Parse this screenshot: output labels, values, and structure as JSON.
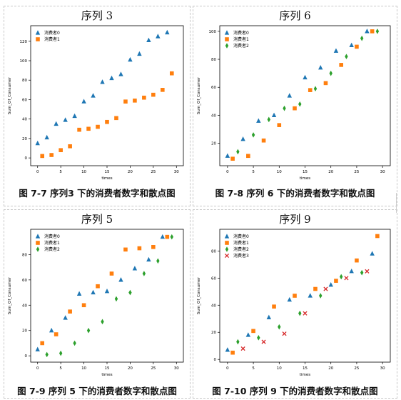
{
  "colors": {
    "series": [
      "#1f77b4",
      "#ff7f0e",
      "#2ca02c",
      "#d62728"
    ],
    "axis": "#000000",
    "panel_border": "#c8c8c8"
  },
  "chart_data": [
    {
      "type": "scatter",
      "panel_title": "序列 3",
      "caption": "图 7-7 序列3 下的消费者数字和散点图",
      "xlabel": "times",
      "ylabel": "Sum_Of_Consumer",
      "xlim": [
        -1.5,
        31.5
      ],
      "ylim": [
        -8,
        136
      ],
      "xticks": [
        0,
        5,
        10,
        15,
        20,
        25,
        30
      ],
      "yticks": [
        0,
        20,
        40,
        60,
        80,
        100,
        120
      ],
      "legend": "top-left",
      "series": [
        {
          "name": "消费者0",
          "marker": "triangle",
          "x": [
            0,
            2,
            4,
            6,
            8,
            10,
            12,
            14,
            16,
            18,
            20,
            22,
            24,
            26,
            28
          ],
          "y": [
            15,
            21,
            35,
            39,
            43,
            58,
            64,
            78,
            82,
            86,
            101,
            107,
            121,
            125,
            129
          ]
        },
        {
          "name": "消费者1",
          "marker": "square",
          "x": [
            1,
            3,
            5,
            7,
            9,
            11,
            13,
            15,
            17,
            19,
            21,
            23,
            25,
            27,
            29
          ],
          "y": [
            2,
            3,
            8,
            12,
            29,
            30,
            32,
            37,
            41,
            58,
            59,
            62,
            65,
            70,
            87
          ]
        }
      ]
    },
    {
      "type": "scatter",
      "panel_title": "序列 6",
      "caption": "图 7-8 序列 6 下的消费者数字和散点图",
      "xlabel": "times",
      "ylabel": "Sum_Of_Consumer",
      "xlim": [
        -1.5,
        31.5
      ],
      "ylim": [
        4,
        104
      ],
      "xticks": [
        0,
        5,
        10,
        15,
        20,
        25,
        30
      ],
      "yticks": [
        20,
        40,
        60,
        80,
        100
      ],
      "legend": "top-left",
      "series": [
        {
          "name": "消费者0",
          "marker": "triangle",
          "x": [
            0,
            3,
            6,
            9,
            12,
            15,
            18,
            21,
            24,
            27
          ],
          "y": [
            11,
            23,
            36,
            40,
            54,
            67,
            74,
            86,
            90,
            100
          ]
        },
        {
          "name": "消费者1",
          "marker": "square",
          "x": [
            1,
            4,
            7,
            10,
            13,
            16,
            19,
            22,
            25,
            28
          ],
          "y": [
            9,
            11,
            22,
            33,
            45,
            58,
            63,
            76,
            89,
            100
          ]
        },
        {
          "name": "消费者2",
          "marker": "diamond",
          "x": [
            2,
            5,
            8,
            11,
            14,
            17,
            20,
            23,
            26,
            29
          ],
          "y": [
            14,
            26,
            37,
            45,
            48,
            59,
            70,
            82,
            95,
            100
          ]
        }
      ]
    },
    {
      "type": "scatter",
      "panel_title": "序列 5",
      "caption": "图 7-9 序列 5 下的消费者数字和散点图",
      "xlabel": "times",
      "ylabel": "Sum_Of_Consumer",
      "xlim": [
        -1.5,
        31.5
      ],
      "ylim": [
        -5,
        100
      ],
      "xticks": [
        0,
        5,
        10,
        15,
        20,
        25,
        30
      ],
      "yticks": [
        0,
        20,
        40,
        60,
        80
      ],
      "legend": "top-left",
      "series": [
        {
          "name": "消费者0",
          "marker": "triangle",
          "x": [
            0,
            3,
            6,
            9,
            12,
            15,
            18,
            21,
            24,
            27
          ],
          "y": [
            5,
            20,
            30,
            49,
            50,
            51,
            60,
            69,
            76,
            94
          ]
        },
        {
          "name": "消费者1",
          "marker": "square",
          "x": [
            1,
            4,
            7,
            10,
            13,
            16,
            19,
            22,
            25,
            28
          ],
          "y": [
            10,
            17,
            35,
            40,
            55,
            65,
            84,
            85,
            86,
            94
          ]
        },
        {
          "name": "消费者2",
          "marker": "diamond",
          "x": [
            2,
            5,
            8,
            11,
            14,
            17,
            20,
            23,
            26,
            29
          ],
          "y": [
            1,
            2,
            10,
            20,
            27,
            45,
            50,
            65,
            75,
            94
          ]
        }
      ]
    },
    {
      "type": "scatter",
      "panel_title": "序列 9",
      "caption": "图 7-10 序列 9 下的消费者数字和散点图",
      "xlabel": "times",
      "ylabel": "Sum_Of_Consumer",
      "xlim": [
        -1.5,
        31.5
      ],
      "ylim": [
        -2,
        96
      ],
      "xticks": [
        0,
        5,
        10,
        15,
        20,
        25,
        30
      ],
      "yticks": [
        0,
        20,
        40,
        60,
        80
      ],
      "legend": "top-left",
      "series": [
        {
          "name": "消费者0",
          "marker": "triangle",
          "x": [
            0,
            4,
            8,
            12,
            16,
            20,
            24,
            28
          ],
          "y": [
            7,
            18,
            31,
            44,
            47,
            55,
            65,
            78
          ]
        },
        {
          "name": "消费者1",
          "marker": "square",
          "x": [
            1,
            5,
            9,
            13,
            17,
            21,
            25,
            29
          ],
          "y": [
            5,
            21,
            39,
            47,
            52,
            58,
            73,
            91
          ]
        },
        {
          "name": "消费者2",
          "marker": "diamond",
          "x": [
            2,
            6,
            10,
            14,
            18,
            22,
            26
          ],
          "y": [
            13,
            16,
            24,
            34,
            47,
            61,
            64
          ]
        },
        {
          "name": "消费者3",
          "marker": "x",
          "x": [
            3,
            7,
            11,
            15,
            19,
            23,
            27
          ],
          "y": [
            8,
            13,
            19,
            34,
            52,
            60,
            65
          ]
        }
      ]
    }
  ]
}
